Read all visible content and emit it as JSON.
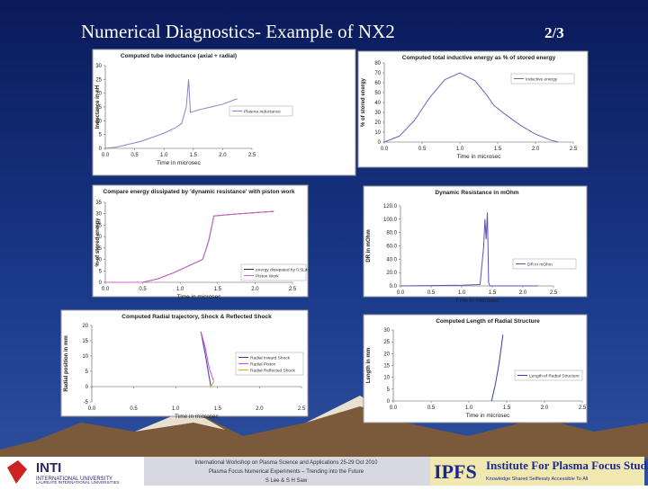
{
  "slide": {
    "title": "Numerical Diagnostics- Example of NX2",
    "page": "2/3",
    "footer": [
      "International Workshop on Plasma Science and Applications 25-29 Oct 2010",
      "Plasma Focus Numerical Experiments – Trending into the Future",
      "S Lee & S H Saw"
    ],
    "logo_left": [
      "INTI",
      "INTERNATIONAL UNIVERSITY",
      "LAUREATE INTERNATIONAL UNIVERSITIES"
    ],
    "logo_right": [
      "IPFS",
      "Institute For Plasma Focus Studies",
      "Knowledge Shared Selflessly Accessible To All"
    ]
  },
  "chart_data": [
    {
      "type": "line",
      "title": "Computed tube inductance (axial + radial)",
      "xlabel": "Time in microsec",
      "ylabel": "Inductance in nH",
      "xlim": [
        0,
        2.5
      ],
      "xticks": [
        {
          "value": 0,
          "label": "0.0"
        },
        0.5,
        {
          "value": 1,
          "label": "1.0"
        },
        1.5,
        {
          "value": 2,
          "label": "2.0"
        },
        2.5
      ],
      "ylim": [
        0,
        30
      ],
      "yticks": [
        0,
        5,
        10,
        15,
        20,
        25,
        30
      ],
      "series": [
        {
          "name": "Plasma Inductance",
          "color": "#8a84c8",
          "x": [
            0,
            0.2,
            0.4,
            0.6,
            0.8,
            1.0,
            1.2,
            1.3,
            1.38,
            1.42,
            1.45,
            1.6,
            1.8,
            2.0,
            2.25
          ],
          "values": [
            0,
            0.5,
            1.5,
            2.5,
            4,
            5.5,
            7.5,
            9,
            15,
            25,
            13,
            14,
            15,
            16,
            18
          ]
        }
      ]
    },
    {
      "type": "line",
      "title": "Computed total inductive energy as % of stored energy",
      "xlabel": "Time in microsec",
      "ylabel": "% of stored energy",
      "xlim": [
        0,
        2.5
      ],
      "xticks": [
        {
          "value": 0,
          "label": "0.0"
        },
        0.5,
        {
          "value": 1,
          "label": "1.0"
        },
        1.5,
        {
          "value": 2,
          "label": "2.0"
        },
        2.5
      ],
      "ylim": [
        0,
        80
      ],
      "yticks": [
        0,
        10,
        20,
        30,
        40,
        50,
        60,
        70,
        80
      ],
      "series": [
        {
          "name": "Inductive energy",
          "color": "#6a64c0",
          "x": [
            0,
            0.2,
            0.4,
            0.6,
            0.8,
            1.0,
            1.2,
            1.35,
            1.45,
            1.6,
            1.8,
            2.0,
            2.2,
            2.3
          ],
          "values": [
            0,
            6,
            22,
            45,
            63,
            70,
            62,
            48,
            37,
            28,
            17,
            8,
            2,
            0
          ]
        }
      ]
    },
    {
      "type": "line",
      "title": "Compare energy dissipated by 'dynamic resistance' with piston work",
      "xlabel": "Time in microsec",
      "ylabel": "% of stored energy",
      "xlim": [
        0,
        2.5
      ],
      "xticks": [
        {
          "value": 0,
          "label": "0.0"
        },
        0.5,
        {
          "value": 1,
          "label": "1.0"
        },
        1.5,
        {
          "value": 2,
          "label": "2.0"
        },
        2.5
      ],
      "ylim": [
        0,
        35
      ],
      "yticks": [
        0,
        5,
        10,
        15,
        20,
        25,
        30,
        35
      ],
      "series": [
        {
          "name": "energy dissipated by 0.5Ldot",
          "color": "#303030",
          "x": [
            0,
            0.5,
            0.7,
            0.9,
            1.1,
            1.3,
            1.38,
            1.45,
            1.6,
            1.8,
            2.0,
            2.25
          ],
          "values": [
            0,
            0,
            1.5,
            4,
            7,
            10,
            18,
            29,
            29.5,
            30,
            30.5,
            31
          ]
        },
        {
          "name": "Piston Work",
          "color": "#d060d0",
          "x": [
            0,
            0.5,
            0.7,
            0.9,
            1.1,
            1.3,
            1.38,
            1.45,
            1.6,
            1.8,
            2.0,
            2.25
          ],
          "values": [
            0,
            0,
            1.5,
            4,
            7,
            10,
            18,
            29,
            29.5,
            30,
            30.5,
            31
          ]
        }
      ]
    },
    {
      "type": "line",
      "title": "Dynamic Resistance in mOhm",
      "xlabel": "Time in microsec",
      "ylabel": "DR in mOhm",
      "xlim": [
        0,
        2.5
      ],
      "xticks": [
        {
          "value": 0,
          "label": "0.0"
        },
        0.5,
        {
          "value": 1,
          "label": "1.0"
        },
        1.5,
        {
          "value": 2,
          "label": "2.0"
        },
        2.5
      ],
      "ylim": [
        0,
        120
      ],
      "yticks": [
        {
          "value": 0,
          "label": "0.0"
        },
        {
          "value": 20,
          "label": "20.0"
        },
        {
          "value": 40,
          "label": "40.0"
        },
        {
          "value": 60,
          "label": "60.0"
        },
        {
          "value": 80,
          "label": "80.0"
        },
        {
          "value": 100,
          "label": "100.0"
        },
        {
          "value": 120,
          "label": "120.0"
        }
      ],
      "series": [
        {
          "name": "DR in mOhm",
          "color": "#5a54b8",
          "x": [
            0,
            0.5,
            1.0,
            1.3,
            1.36,
            1.38,
            1.4,
            1.42,
            1.44,
            1.46,
            1.6,
            2.25
          ],
          "values": [
            0,
            0.5,
            1,
            2,
            60,
            100,
            70,
            110,
            5,
            0,
            0,
            0
          ]
        }
      ]
    },
    {
      "type": "line",
      "title": "Computed Radial trajectory, Shock & Reflected Shock",
      "xlabel": "Time in microsec",
      "ylabel": "Radial position in mm",
      "xlim": [
        0,
        2.5
      ],
      "xticks": [
        {
          "value": 0,
          "label": "0.0"
        },
        0.5,
        {
          "value": 1,
          "label": "1.0"
        },
        1.5,
        {
          "value": 2,
          "label": "2.0"
        },
        2.5
      ],
      "ylim": [
        -5,
        20
      ],
      "yticks": [
        -5,
        0,
        5,
        10,
        15,
        20
      ],
      "series": [
        {
          "name": "Radial Inward Shock",
          "color": "#3040a0",
          "x": [
            1.3,
            1.35,
            1.4,
            1.42
          ],
          "values": [
            18,
            11,
            3,
            0
          ]
        },
        {
          "name": "Radial Piston",
          "color": "#e040e0",
          "x": [
            1.3,
            1.35,
            1.4,
            1.45
          ],
          "values": [
            18,
            13,
            6,
            2
          ]
        },
        {
          "name": "Radial Reflected Shock",
          "color": "#d0b020",
          "x": [
            1.42,
            1.44,
            1.46
          ],
          "values": [
            0,
            1,
            2
          ]
        }
      ]
    },
    {
      "type": "line",
      "title": "Computed Length of Radial Structure",
      "xlabel": "Time in microsec",
      "ylabel": "Length in mm",
      "xlim": [
        0,
        2.5
      ],
      "xticks": [
        {
          "value": 0,
          "label": "0.0"
        },
        0.5,
        {
          "value": 1,
          "label": "1.0"
        },
        1.5,
        {
          "value": 2,
          "label": "2.0"
        },
        2.5
      ],
      "ylim": [
        0,
        30
      ],
      "yticks": [
        0,
        5,
        10,
        15,
        20,
        25,
        30
      ],
      "series": [
        {
          "name": "Length of Radial Structure",
          "color": "#3040a0",
          "x": [
            1.3,
            1.35,
            1.4,
            1.45
          ],
          "values": [
            0,
            7,
            16,
            28
          ]
        }
      ]
    }
  ]
}
